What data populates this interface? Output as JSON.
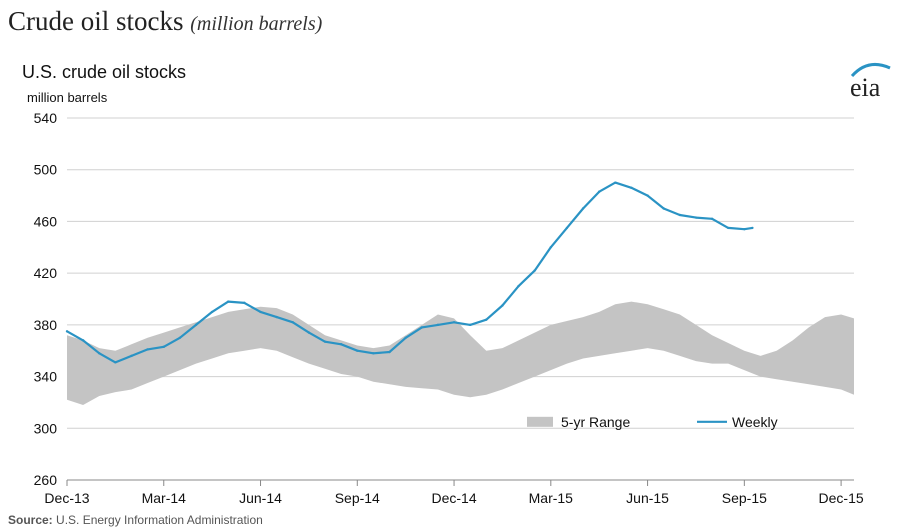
{
  "header": {
    "title": "Crude oil stocks",
    "subtitle": "(million barrels)"
  },
  "logo_text": "eia",
  "colors": {
    "range_fill": "#c4c4c4",
    "weekly_line": "#2a93c4",
    "grid": "#d0d0d0",
    "axis": "#888888",
    "logo_swoosh": "#2a93c4"
  },
  "source": {
    "label": "Source:",
    "text": "U.S. Energy Information Administration"
  },
  "chart_data": {
    "type": "area",
    "title": "U.S. crude oil stocks",
    "ylabel": "million barrels",
    "ylim": [
      260,
      540
    ],
    "yticks": [
      "260",
      "300",
      "340",
      "380",
      "420",
      "460",
      "500",
      "540"
    ],
    "xlim": [
      0,
      24.4
    ],
    "xticks": [
      {
        "label": "Dec-13",
        "x": 0
      },
      {
        "label": "Mar-14",
        "x": 3
      },
      {
        "label": "Jun-14",
        "x": 6
      },
      {
        "label": "Sep-14",
        "x": 9
      },
      {
        "label": "Dec-14",
        "x": 12
      },
      {
        "label": "Mar-15",
        "x": 15
      },
      {
        "label": "Jun-15",
        "x": 18
      },
      {
        "label": "Sep-15",
        "x": 21
      },
      {
        "label": "Dec-15",
        "x": 24
      }
    ],
    "grid": true,
    "legend_position": "bottom-right",
    "x_units": "months since Dec-13",
    "series": [
      {
        "name": "5-yr Range",
        "kind": "band",
        "x": [
          0,
          0.5,
          1,
          1.5,
          2,
          2.5,
          3,
          3.5,
          4,
          4.5,
          5,
          5.5,
          6,
          6.5,
          7,
          7.5,
          8,
          8.5,
          9,
          9.5,
          10,
          10.5,
          11,
          11.5,
          12,
          12.5,
          13,
          13.5,
          14,
          14.5,
          15,
          15.5,
          16,
          16.5,
          17,
          17.5,
          18,
          18.5,
          19,
          19.5,
          20,
          20.5,
          21,
          21.5,
          22,
          22.5,
          23,
          23.5,
          24,
          24.4
        ],
        "upper": [
          372,
          368,
          362,
          360,
          365,
          370,
          374,
          378,
          382,
          386,
          390,
          392,
          394,
          393,
          388,
          380,
          372,
          368,
          364,
          362,
          364,
          372,
          380,
          388,
          385,
          372,
          360,
          362,
          368,
          374,
          380,
          383,
          386,
          390,
          396,
          398,
          396,
          392,
          388,
          380,
          372,
          366,
          360,
          356,
          360,
          368,
          378,
          386,
          388,
          385
        ],
        "lower": [
          322,
          318,
          325,
          328,
          330,
          335,
          340,
          345,
          350,
          354,
          358,
          360,
          362,
          360,
          355,
          350,
          346,
          342,
          340,
          336,
          334,
          332,
          331,
          330,
          326,
          324,
          326,
          330,
          335,
          340,
          345,
          350,
          354,
          356,
          358,
          360,
          362,
          360,
          356,
          352,
          350,
          350,
          345,
          340,
          338,
          336,
          334,
          332,
          330,
          326
        ]
      },
      {
        "name": "Weekly",
        "kind": "line",
        "x": [
          0,
          0.5,
          1,
          1.5,
          2,
          2.5,
          3,
          3.5,
          4,
          4.5,
          5,
          5.5,
          6,
          6.5,
          7,
          7.5,
          8,
          8.5,
          9,
          9.5,
          10,
          10.5,
          11,
          11.5,
          12,
          12.5,
          13,
          13.5,
          14,
          14.5,
          15,
          15.5,
          16,
          16.5,
          17,
          17.5,
          18,
          18.5,
          19,
          19.5,
          20,
          20.5,
          21,
          21.25
        ],
        "values": [
          375,
          368,
          358,
          351,
          356,
          361,
          363,
          370,
          380,
          390,
          398,
          397,
          390,
          386,
          382,
          374,
          367,
          365,
          360,
          358,
          359,
          370,
          378,
          380,
          382,
          380,
          384,
          395,
          410,
          422,
          440,
          455,
          470,
          483,
          490,
          486,
          480,
          470,
          465,
          463,
          462,
          455,
          454,
          455
        ]
      }
    ]
  }
}
